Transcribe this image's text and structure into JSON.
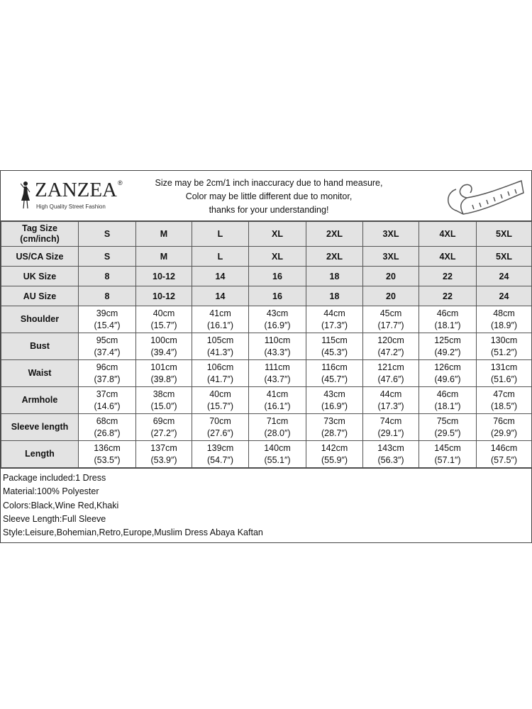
{
  "header": {
    "brand": "ZANZEA",
    "registered": "®",
    "tagline": "High Quality Street Fashion",
    "notice": [
      "Size may be 2cm/1 inch inaccuracy due to hand measure,",
      "Color may be little different due to monitor,",
      "thanks for your understanding!"
    ]
  },
  "size_rows": [
    {
      "label": "Tag Size (cm/inch)",
      "values": [
        "S",
        "M",
        "L",
        "XL",
        "2XL",
        "3XL",
        "4XL",
        "5XL"
      ]
    },
    {
      "label": "US/CA Size",
      "values": [
        "S",
        "M",
        "L",
        "XL",
        "2XL",
        "3XL",
        "4XL",
        "5XL"
      ]
    },
    {
      "label": "UK Size",
      "values": [
        "8",
        "10-12",
        "14",
        "16",
        "18",
        "20",
        "22",
        "24"
      ]
    },
    {
      "label": "AU Size",
      "values": [
        "8",
        "10-12",
        "14",
        "16",
        "18",
        "20",
        "22",
        "24"
      ]
    }
  ],
  "measure_rows": [
    {
      "label": "Shoulder",
      "cm": [
        "39cm",
        "40cm",
        "41cm",
        "43cm",
        "44cm",
        "45cm",
        "46cm",
        "48cm"
      ],
      "inch": [
        "(15.4″)",
        "(15.7″)",
        "(16.1″)",
        "(16.9″)",
        "(17.3″)",
        "(17.7″)",
        "(18.1″)",
        "(18.9″)"
      ]
    },
    {
      "label": "Bust",
      "cm": [
        "95cm",
        "100cm",
        "105cm",
        "110cm",
        "115cm",
        "120cm",
        "125cm",
        "130cm"
      ],
      "inch": [
        "(37.4″)",
        "(39.4″)",
        "(41.3″)",
        "(43.3″)",
        "(45.3″)",
        "(47.2″)",
        "(49.2″)",
        "(51.2″)"
      ]
    },
    {
      "label": "Waist",
      "cm": [
        "96cm",
        "101cm",
        "106cm",
        "111cm",
        "116cm",
        "121cm",
        "126cm",
        "131cm"
      ],
      "inch": [
        "(37.8″)",
        "(39.8″)",
        "(41.7″)",
        "(43.7″)",
        "(45.7″)",
        "(47.6″)",
        "(49.6″)",
        "(51.6″)"
      ]
    },
    {
      "label": "Armhole",
      "cm": [
        "37cm",
        "38cm",
        "40cm",
        "41cm",
        "43cm",
        "44cm",
        "46cm",
        "47cm"
      ],
      "inch": [
        "(14.6″)",
        "(15.0″)",
        "(15.7″)",
        "(16.1″)",
        "(16.9″)",
        "(17.3″)",
        "(18.1″)",
        "(18.5″)"
      ]
    },
    {
      "label": "Sleeve length",
      "cm": [
        "68cm",
        "69cm",
        "70cm",
        "71cm",
        "73cm",
        "74cm",
        "75cm",
        "76cm"
      ],
      "inch": [
        "(26.8″)",
        "(27.2″)",
        "(27.6″)",
        "(28.0″)",
        "(28.7″)",
        "(29.1″)",
        "(29.5″)",
        "(29.9″)"
      ]
    },
    {
      "label": "Length",
      "cm": [
        "136cm",
        "137cm",
        "139cm",
        "140cm",
        "142cm",
        "143cm",
        "145cm",
        "146cm"
      ],
      "inch": [
        "(53.5″)",
        "(53.9″)",
        "(54.7″)",
        "(55.1″)",
        "(55.9″)",
        "(56.3″)",
        "(57.1″)",
        "(57.5″)"
      ]
    }
  ],
  "info": [
    "Package included:1 Dress",
    "Material:100% Polyester",
    "Colors:Black,Wine Red,Khaki",
    "Sleeve Length:Full Sleeve",
    "Style:Leisure,Bohemian,Retro,Europe,Muslim Dress Abaya Kaftan"
  ]
}
